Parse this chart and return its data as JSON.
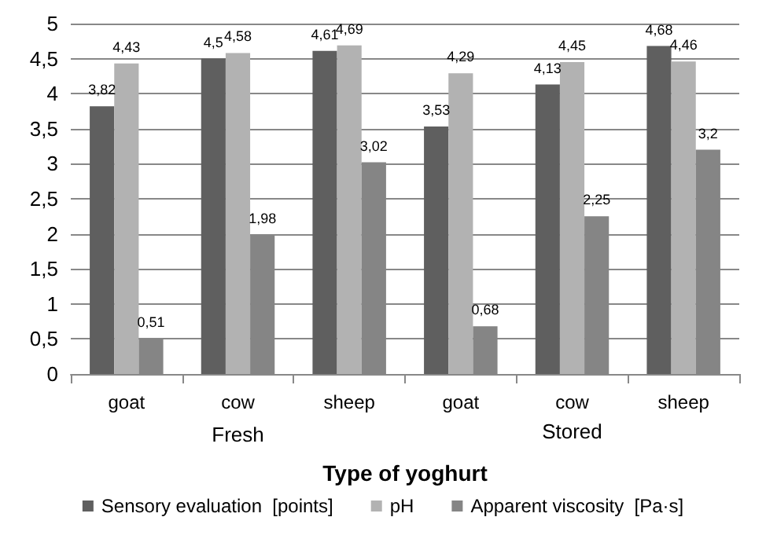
{
  "chart_data": {
    "type": "bar",
    "xlabel": "Type of yoghurt",
    "categories": [
      "goat",
      "cow",
      "sheep",
      "goat",
      "cow",
      "sheep"
    ],
    "annotations": [
      "Fresh",
      "Stored"
    ],
    "series": [
      {
        "name": "Sensory evaluation  [points]",
        "color": "#5f5f5f",
        "values": [
          3.82,
          4.5,
          4.61,
          3.53,
          4.13,
          4.68
        ],
        "value_labels": [
          "3,82",
          "4,5",
          "4,61",
          "3,53",
          "4,13",
          "4,68"
        ]
      },
      {
        "name": "pH",
        "color": "#b2b2b2",
        "values": [
          4.43,
          4.58,
          4.69,
          4.29,
          4.45,
          4.46
        ],
        "value_labels": [
          "4,43",
          "4,58",
          "4,69",
          "4,29",
          "4,45",
          "4,46"
        ]
      },
      {
        "name": "Apparent viscosity  [Pa·s]",
        "color": "#858585",
        "values": [
          0.51,
          1.98,
          3.02,
          0.68,
          2.25,
          3.2
        ],
        "value_labels": [
          "0,51",
          "1,98",
          "3,02",
          "0,68",
          "2,25",
          "3,2"
        ]
      }
    ],
    "ylim": [
      0,
      5
    ],
    "yticks": [
      0,
      {
        "value": 0.5,
        "label": "0,5"
      },
      1,
      {
        "value": 1.5,
        "label": "1,5"
      },
      2,
      {
        "value": 2.5,
        "label": "2,5"
      },
      3,
      {
        "value": 3.5,
        "label": "3,5"
      },
      4,
      {
        "value": 4.5,
        "label": "4,5"
      },
      5
    ],
    "grid": "y",
    "legend": "bottom"
  }
}
